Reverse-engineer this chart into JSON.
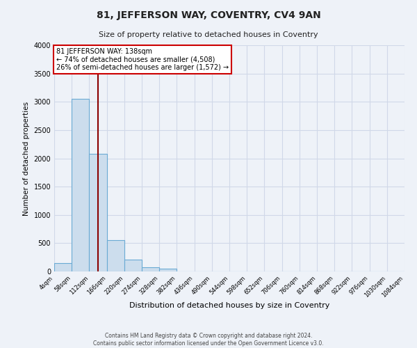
{
  "title": "81, JEFFERSON WAY, COVENTRY, CV4 9AN",
  "subtitle": "Size of property relative to detached houses in Coventry",
  "xlabel": "Distribution of detached houses by size in Coventry",
  "ylabel": "Number of detached properties",
  "bin_edges": [
    4,
    58,
    112,
    166,
    220,
    274,
    328,
    382,
    436,
    490,
    544,
    598,
    652,
    706,
    760,
    814,
    868,
    922,
    976,
    1030,
    1084
  ],
  "bin_labels": [
    "4sqm",
    "58sqm",
    "112sqm",
    "166sqm",
    "220sqm",
    "274sqm",
    "328sqm",
    "382sqm",
    "436sqm",
    "490sqm",
    "544sqm",
    "598sqm",
    "652sqm",
    "706sqm",
    "760sqm",
    "814sqm",
    "868sqm",
    "922sqm",
    "976sqm",
    "1030sqm",
    "1084sqm"
  ],
  "bar_heights": [
    150,
    3050,
    2080,
    560,
    210,
    75,
    45,
    0,
    0,
    0,
    0,
    0,
    0,
    0,
    0,
    0,
    0,
    0,
    0,
    0
  ],
  "bar_color": "#ccdded",
  "bar_edge_color": "#6aaad4",
  "property_line_x": 138,
  "property_line_color": "#8b0000",
  "annotation_title": "81 JEFFERSON WAY: 138sqm",
  "annotation_line1": "← 74% of detached houses are smaller (4,508)",
  "annotation_line2": "26% of semi-detached houses are larger (1,572) →",
  "annotation_box_color": "#ffffff",
  "annotation_box_edge_color": "#cc0000",
  "ylim": [
    0,
    4000
  ],
  "yticks": [
    0,
    500,
    1000,
    1500,
    2000,
    2500,
    3000,
    3500,
    4000
  ],
  "grid_color": "#d0d8e8",
  "background_color": "#eef2f8",
  "footer_line1": "Contains HM Land Registry data © Crown copyright and database right 2024.",
  "footer_line2": "Contains public sector information licensed under the Open Government Licence v3.0."
}
